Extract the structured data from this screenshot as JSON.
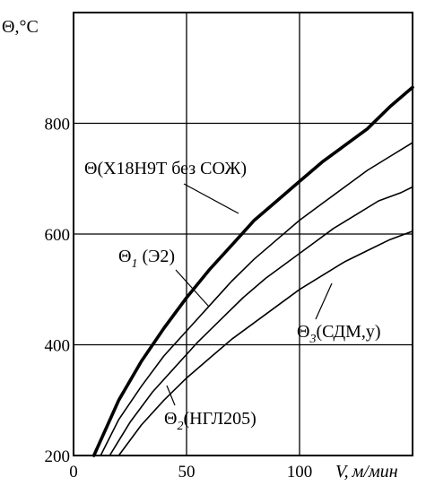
{
  "chart_data": {
    "type": "line",
    "ylabel": "Θ,°C",
    "xlabel_var": "V,",
    "xlabel_unit": "м/мин",
    "xlim": [
      0,
      150
    ],
    "ylim": [
      200,
      1000
    ],
    "x_ticks": [
      0,
      50,
      100
    ],
    "y_ticks": [
      200,
      400,
      600,
      800
    ],
    "grid": true,
    "series": [
      {
        "name": "Θ(Х18Н9Т без СОЖ)",
        "label_parts": {
          "base": "Θ",
          "sub": "",
          "text": "(Х18Н9Т без СОЖ)"
        },
        "style": "bold",
        "x": [
          9,
          20,
          30,
          40,
          50,
          60,
          70,
          80,
          90,
          100,
          110,
          120,
          130,
          140,
          150
        ],
        "y": [
          200,
          300,
          370,
          430,
          485,
          535,
          580,
          625,
          660,
          695,
          730,
          760,
          790,
          830,
          865
        ]
      },
      {
        "name": "Θ1 (Э2)",
        "label_parts": {
          "base": "Θ",
          "sub": "1",
          "text": " (Э2)"
        },
        "style": "thin",
        "x": [
          12,
          20,
          30,
          40,
          50,
          60,
          70,
          80,
          90,
          100,
          110,
          120,
          130,
          140,
          150
        ],
        "y": [
          200,
          265,
          325,
          380,
          425,
          470,
          515,
          555,
          590,
          625,
          655,
          685,
          715,
          740,
          765
        ]
      },
      {
        "name": "Θ2 (НГЛ205)",
        "label_parts": {
          "base": "Θ",
          "sub": "2",
          "text": "(НГЛ205)"
        },
        "style": "thin",
        "x": [
          16,
          25,
          35,
          45,
          55,
          65,
          75,
          85,
          95,
          105,
          115,
          125,
          135,
          145,
          150
        ],
        "y": [
          200,
          260,
          315,
          360,
          405,
          445,
          485,
          520,
          550,
          580,
          610,
          635,
          660,
          675,
          685
        ]
      },
      {
        "name": "Θ3(СДМ,у)",
        "label_parts": {
          "base": "Θ",
          "sub": "3",
          "text": "(СДМ,у)"
        },
        "style": "thin",
        "x": [
          20,
          30,
          40,
          50,
          60,
          70,
          80,
          90,
          100,
          110,
          120,
          130,
          140,
          150
        ],
        "y": [
          200,
          255,
          300,
          340,
          375,
          410,
          440,
          470,
          500,
          525,
          550,
          570,
          590,
          605
        ]
      }
    ]
  }
}
